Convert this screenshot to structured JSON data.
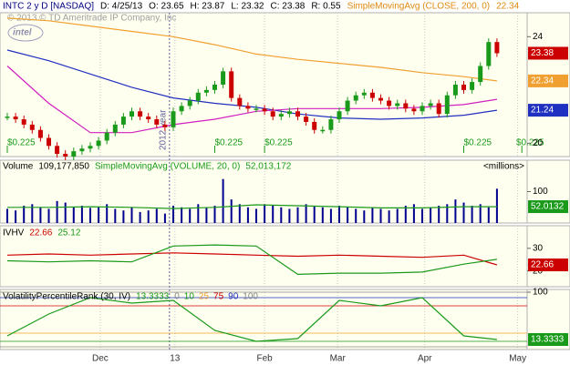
{
  "header": {
    "symbol": "INTC 2 y D [NASDAQ]",
    "date": "D: 4/25/13",
    "open": "O: 23.65",
    "high": "H: 23.87",
    "low": "L: 23.32",
    "close": "C: 23.38",
    "range": "R: 0.55",
    "study": "SimpleMovingAvg (CLOSE, 200, 0)",
    "study_value": 22.34
  },
  "watermark": "© 2013 © TD Ameritrade IP Company, Inc",
  "logo": "intel",
  "year_label": "2012 year",
  "dividends": [
    "$0.225",
    "$0.225",
    "$0.225",
    "$0.225",
    "$0.225"
  ],
  "dividend_index": [
    0,
    25,
    31,
    55,
    62
  ],
  "chart_data": [
    {
      "type": "candlestick",
      "name": "price",
      "closes": [
        21.0,
        20.9,
        20.7,
        20.5,
        20.2,
        19.9,
        19.6,
        19.5,
        19.7,
        19.8,
        19.9,
        20.1,
        20.4,
        20.7,
        21.0,
        21.2,
        21.0,
        20.9,
        20.7,
        20.6,
        21.2,
        21.4,
        21.6,
        21.9,
        22.0,
        22.2,
        22.7,
        21.7,
        21.4,
        21.3,
        21.3,
        21.2,
        21.0,
        21.1,
        21.2,
        21.0,
        20.8,
        20.5,
        20.5,
        20.9,
        21.2,
        21.6,
        21.8,
        21.9,
        21.7,
        21.6,
        21.4,
        21.5,
        21.3,
        21.2,
        21.4,
        21.5,
        21.1,
        21.8,
        22.2,
        22.0,
        22.3,
        22.9,
        23.8,
        23.38
      ],
      "up_color": "#1a9a1a",
      "down_color": "#cc0000",
      "line_x": [
        0,
        5,
        10,
        15,
        20,
        25,
        30,
        35,
        40,
        45,
        50,
        55,
        59
      ],
      "series": [
        {
          "name": "SimpleMovingAvg (CLOSE, 200, 0)",
          "color": "#f0a030",
          "values": [
            24.7,
            24.6,
            24.4,
            24.2,
            24.0,
            23.7,
            23.35,
            23.15,
            23.0,
            22.85,
            22.65,
            22.5,
            22.34
          ]
        },
        {
          "color": "#2030c0",
          "values": [
            23.5,
            23.1,
            22.6,
            22.1,
            21.7,
            21.5,
            21.35,
            21.1,
            20.95,
            20.9,
            20.95,
            21.05,
            21.24
          ]
        },
        {
          "color": "#d020c0",
          "values": [
            22.9,
            21.5,
            20.4,
            20.4,
            20.7,
            20.9,
            21.2,
            21.3,
            21.3,
            21.3,
            21.35,
            21.45,
            21.65
          ]
        }
      ],
      "last_values": [
        23.38,
        22.34,
        21.24
      ],
      "last_colors": [
        "#cc0000",
        "#f0a030",
        "#2030c0"
      ],
      "ylim": [
        19.5,
        24.9
      ],
      "yticks": [
        20,
        24
      ]
    },
    {
      "type": "volume",
      "title": "Volume",
      "last": "109,177,850",
      "study": "SimpleMovingAvg (VOLUME, 20, 0)",
      "study_value": "52,013,172",
      "unit": "<millions>",
      "values": [
        45,
        40,
        55,
        60,
        50,
        45,
        70,
        65,
        50,
        55,
        48,
        52,
        60,
        45,
        40,
        50,
        35,
        40,
        45,
        30,
        55,
        50,
        45,
        60,
        50,
        55,
        140,
        75,
        60,
        50,
        45,
        60,
        55,
        50,
        45,
        50,
        60,
        55,
        50,
        45,
        55,
        50,
        45,
        40,
        50,
        45,
        40,
        45,
        55,
        60,
        45,
        50,
        55,
        60,
        75,
        65,
        55,
        60,
        50,
        109.17785
      ],
      "color": "#000090",
      "line_x": [
        0,
        5,
        10,
        15,
        20,
        25,
        30,
        35,
        40,
        45,
        50,
        55,
        59
      ],
      "series": [
        {
          "color": "#1a9a1a",
          "values": [
            50,
            50,
            52,
            50,
            46,
            50,
            58,
            55,
            52,
            48,
            48,
            52,
            52.013172
          ]
        }
      ],
      "last_values": [
        52.0132
      ],
      "last_colors": [
        "#1a9a1a"
      ],
      "ylim": [
        0,
        200
      ],
      "yticks": [
        100
      ]
    },
    {
      "type": "line",
      "title": "IVHV",
      "line_x": [
        0,
        5,
        10,
        15,
        20,
        25,
        30,
        35,
        40,
        45,
        50,
        55,
        59
      ],
      "series": [
        {
          "color": "#cc0000",
          "values": [
            27,
            27.5,
            27,
            27.5,
            28,
            27.5,
            27,
            26.5,
            27,
            26.5,
            26,
            27,
            22.66
          ]
        },
        {
          "color": "#1a9a1a",
          "values": [
            24.5,
            24,
            24.5,
            24,
            31,
            31.5,
            31,
            18.5,
            19,
            19,
            19.5,
            23,
            25.12
          ]
        }
      ],
      "legend_values": [
        22.66,
        25.12
      ],
      "last_values": [
        22.66
      ],
      "last_colors": [
        "#cc0000"
      ],
      "ylim": [
        13,
        40
      ],
      "yticks": [
        20,
        30
      ]
    },
    {
      "type": "line",
      "title": "VolatilityPercentileRank (30, IV)",
      "line_x": [
        0,
        5,
        10,
        15,
        20,
        25,
        30,
        35,
        40,
        45,
        50,
        55,
        59
      ],
      "series": [
        {
          "color": "#1a9a1a",
          "values": [
            20,
            60,
            90,
            80,
            85,
            30,
            10,
            15,
            85,
            75,
            90,
            20,
            13.3333
          ]
        }
      ],
      "legend_values": [
        13.3333
      ],
      "levels": [
        0,
        10,
        25,
        75,
        90,
        100
      ],
      "level_colors": [
        "#888888",
        "#1a9a1a",
        "#f0a030",
        "#cc0000",
        "#2030c0",
        "#888888"
      ],
      "last_values": [
        13.3333
      ],
      "last_colors": [
        "#1a9a1a"
      ],
      "ylim": [
        -5,
        105
      ],
      "yticks": [
        100
      ]
    }
  ],
  "x_labels": [
    "Dec",
    "13",
    "Feb",
    "Mar",
    "Apr",
    "May"
  ],
  "x_label_index": [
    11.2,
    20.2,
    31,
    39.8,
    50.3,
    61.5
  ]
}
